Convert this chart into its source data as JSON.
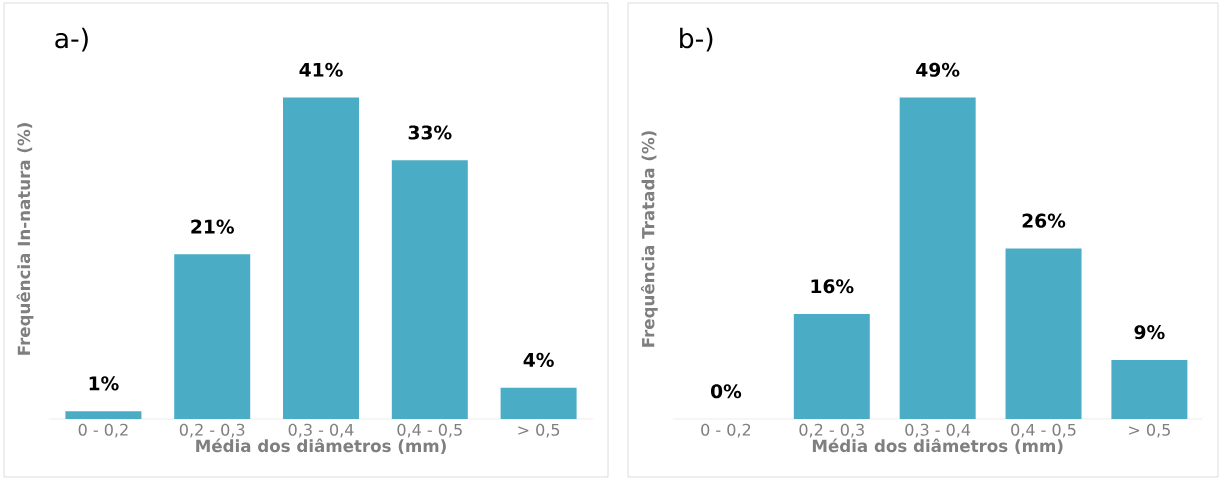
{
  "chart_data": [
    {
      "type": "bar",
      "title": "a-)",
      "xlabel": "Média dos diâmetros (mm)",
      "ylabel": "Frequência In-natura (%)",
      "categories": [
        "0 - 0,2",
        "0,2 - 0,3",
        "0,3 - 0,4",
        "0,4 - 0,5",
        "> 0,5"
      ],
      "values": [
        1,
        21,
        41,
        33,
        4
      ],
      "value_labels": [
        "1%",
        "21%",
        "41%",
        "33%",
        "4%"
      ],
      "color": "#4aadc5"
    },
    {
      "type": "bar",
      "title": "b-)",
      "xlabel": "Média dos diâmetros (mm)",
      "ylabel": "Frequência Tratada (%)",
      "categories": [
        "0 - 0,2",
        "0,2 - 0,3",
        "0,3 - 0,4",
        "0,4 - 0,5",
        "> 0,5"
      ],
      "values": [
        0,
        16,
        49,
        26,
        9
      ],
      "value_labels": [
        "0%",
        "16%",
        "49%",
        "26%",
        "9%"
      ],
      "color": "#4aadc5"
    }
  ]
}
